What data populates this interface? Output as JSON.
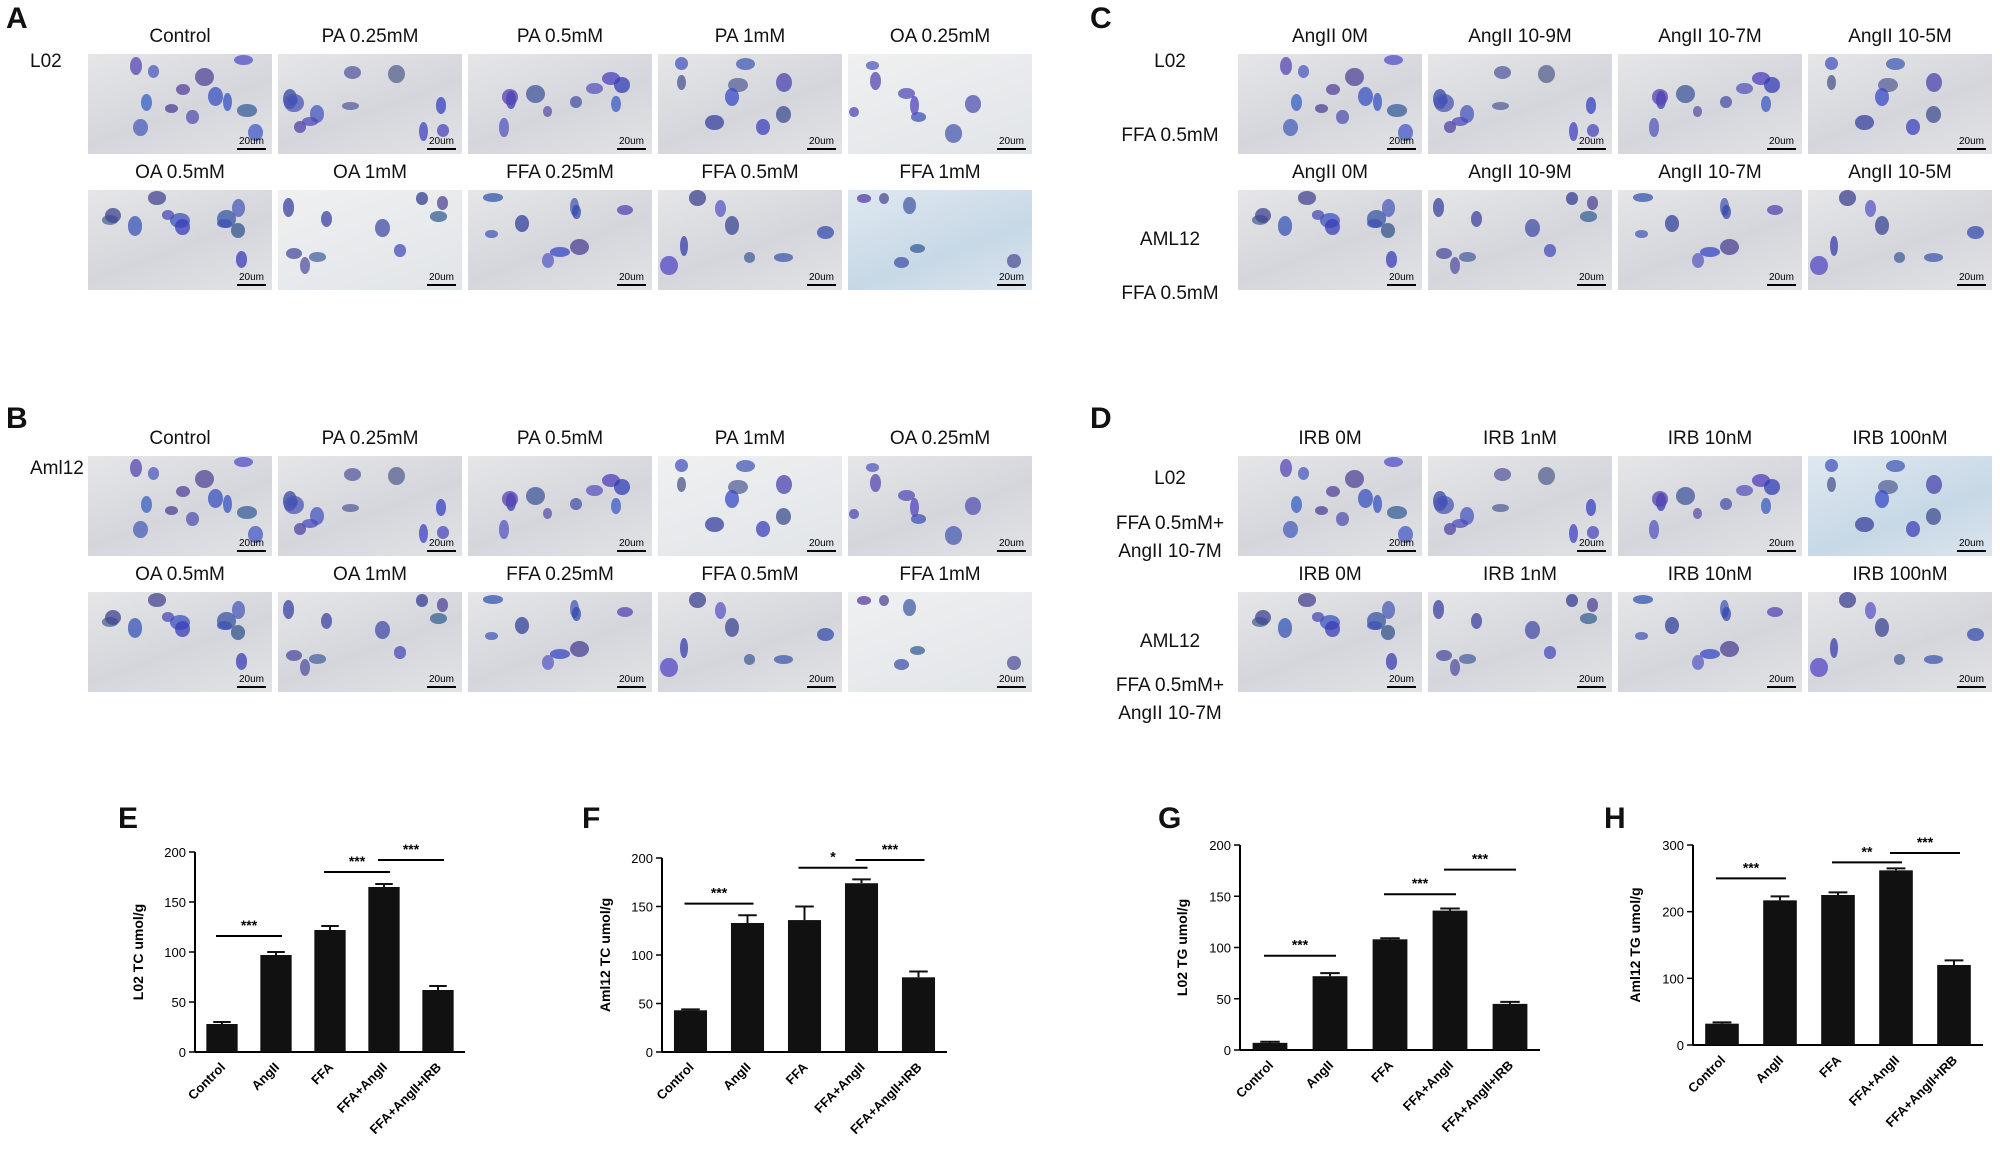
{
  "panel_letters": [
    "A",
    "B",
    "C",
    "D",
    "E",
    "F",
    "G",
    "H"
  ],
  "panel_A": {
    "cell_line": "L02",
    "row1": [
      "Control",
      "PA 0.25mM",
      "PA 0.5mM",
      "PA 1mM",
      "OA 0.25mM"
    ],
    "row2": [
      "OA 0.5mM",
      "OA 1mM",
      "FFA 0.25mM",
      "FFA 0.5mM",
      "FFA 1mM"
    ]
  },
  "panel_B": {
    "cell_line": "Aml12",
    "row1": [
      "Control",
      "PA 0.25mM",
      "PA 0.5mM",
      "PA 1mM",
      "OA 0.25mM"
    ],
    "row2": [
      "OA 0.5mM",
      "OA 1mM",
      "FFA 0.25mM",
      "FFA 0.5mM",
      "FFA 1mM"
    ]
  },
  "panel_C": {
    "row1_labels": [
      "L02",
      "FFA 0.5mM"
    ],
    "row2_labels": [
      "AML12",
      "FFA 0.5mM"
    ],
    "columns": [
      "AngII 0M",
      "AngII 10-9M",
      "AngII 10-7M",
      "AngII 10-5M"
    ]
  },
  "panel_D": {
    "row1_labels": [
      "L02",
      "FFA 0.5mM+",
      "AngII 10-7M"
    ],
    "row2_labels": [
      "AML12",
      "FFA 0.5mM+",
      "AngII 10-7M"
    ],
    "columns": [
      "IRB 0M",
      "IRB 1nM",
      "IRB 10nM",
      "IRB 100nM"
    ]
  },
  "scale_bar_label": "20um",
  "chart_data": [
    {
      "panel": "E",
      "type": "bar",
      "ylabel": "L02 TC umol/g",
      "ylim": [
        0,
        200
      ],
      "yticks": [
        0,
        50,
        100,
        150,
        200
      ],
      "categories": [
        "Control",
        "AngII",
        "FFA",
        "FFA+AngII",
        "FFA+AngII+IRB"
      ],
      "values": [
        28,
        97,
        122,
        165,
        62
      ],
      "errors": [
        2,
        3,
        4,
        3,
        4
      ],
      "significance": [
        {
          "from": 0,
          "to": 1,
          "label": "***",
          "level": 116
        },
        {
          "from": 2,
          "to": 3,
          "label": "***",
          "level": 180
        },
        {
          "from": 3,
          "to": 4,
          "label": "***",
          "level": 192
        }
      ]
    },
    {
      "panel": "F",
      "type": "bar",
      "ylabel": "Aml12 TC umol/g",
      "ylim": [
        0,
        200
      ],
      "yticks": [
        0,
        50,
        100,
        150,
        200
      ],
      "categories": [
        "Control",
        "AngII",
        "FFA",
        "FFA+AngII",
        "FFA+AngII+IRB"
      ],
      "values": [
        43,
        133,
        136,
        174,
        77
      ],
      "errors": [
        1,
        8,
        14,
        4,
        6
      ],
      "significance": [
        {
          "from": 0,
          "to": 1,
          "label": "***",
          "level": 153
        },
        {
          "from": 2,
          "to": 3,
          "label": "*",
          "level": 190
        },
        {
          "from": 3,
          "to": 4,
          "label": "***",
          "level": 198
        }
      ]
    },
    {
      "panel": "G",
      "type": "bar",
      "ylabel": "L02 TG umol/g",
      "ylim": [
        0,
        200
      ],
      "yticks": [
        0,
        50,
        100,
        150,
        200
      ],
      "categories": [
        "Control",
        "AngII",
        "FFA",
        "FFA+AngII",
        "FFA+AngII+IRB"
      ],
      "values": [
        7,
        72,
        108,
        136,
        45
      ],
      "errors": [
        1,
        3,
        1,
        2,
        2
      ],
      "significance": [
        {
          "from": 0,
          "to": 1,
          "label": "***",
          "level": 92
        },
        {
          "from": 2,
          "to": 3,
          "label": "***",
          "level": 152
        },
        {
          "from": 3,
          "to": 4,
          "label": "***",
          "level": 176
        }
      ]
    },
    {
      "panel": "H",
      "type": "bar",
      "ylabel": "Aml12 TG umol/g",
      "ylim": [
        0,
        300
      ],
      "yticks": [
        0,
        100,
        200,
        300
      ],
      "categories": [
        "Control",
        "AngII",
        "FFA",
        "FFA+AngII",
        "FFA+AngII+IRB"
      ],
      "values": [
        32,
        217,
        225,
        262,
        120
      ],
      "errors": [
        2,
        6,
        4,
        3,
        7
      ],
      "significance": [
        {
          "from": 0,
          "to": 1,
          "label": "***",
          "level": 250
        },
        {
          "from": 2,
          "to": 3,
          "label": "**",
          "level": 274
        },
        {
          "from": 3,
          "to": 4,
          "label": "***",
          "level": 288
        }
      ]
    }
  ]
}
